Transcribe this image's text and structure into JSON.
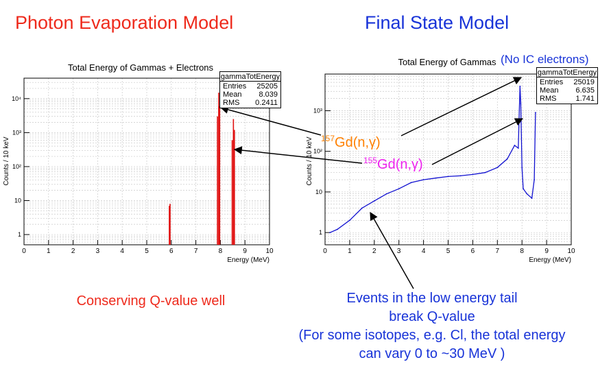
{
  "headings": {
    "left": "Photon Evaporation Model",
    "right": "Final State Model"
  },
  "colors": {
    "left_heading": "#ee2a1c",
    "right_heading": "#1833d8",
    "red": "#e01010",
    "blue": "#1010d0",
    "orange": "#ff8000",
    "magenta": "#ee22ee"
  },
  "chart_data": [
    {
      "type": "bar",
      "title": "Total Energy of Gammas + Electrons",
      "xlabel": "Energy (MeV)",
      "ylabel": "Counts / 10 keV",
      "xlim": [
        0,
        10
      ],
      "ylim_log": [
        0.5,
        40000
      ],
      "log_y": true,
      "grid": true,
      "xticks": [
        "0",
        "1",
        "2",
        "3",
        "4",
        "5",
        "6",
        "7",
        "8",
        "9",
        "10"
      ],
      "yticks": [
        "1",
        "10",
        "10²",
        "10³",
        "10⁴"
      ],
      "stats": {
        "name": "gammaTotEnergy",
        "entries": "25205",
        "mean": "8.039",
        "rms": "0.2411"
      },
      "peaks": [
        {
          "x": 5.92,
          "y": 7
        },
        {
          "x": 5.95,
          "y": 8
        },
        {
          "x": 7.88,
          "y": 3000
        },
        {
          "x": 7.93,
          "y": 15000
        },
        {
          "x": 7.97,
          "y": 6000
        },
        {
          "x": 8.48,
          "y": 600
        },
        {
          "x": 8.53,
          "y": 2500
        },
        {
          "x": 8.57,
          "y": 1200
        }
      ],
      "color": "#e01010"
    },
    {
      "type": "line",
      "title": "Total Energy of Gammas",
      "title_extra": "(No IC electrons)",
      "xlabel": "Energy (MeV)",
      "ylabel": "Counts / 10 keV",
      "xlim": [
        0,
        10
      ],
      "ylim_log": [
        0.5,
        8000
      ],
      "log_y": true,
      "grid": true,
      "xticks": [
        "0",
        "1",
        "2",
        "3",
        "4",
        "5",
        "6",
        "7",
        "8",
        "9",
        "10"
      ],
      "yticks": [
        "1",
        "10",
        "10²",
        "10³"
      ],
      "stats": {
        "name": "gammaTotEnergy",
        "entries": "25019",
        "mean": "6.635",
        "rms": "1.741"
      },
      "series": [
        {
          "x": [
            0.2,
            0.5,
            1.0,
            1.5,
            2.0,
            2.5,
            3.0,
            3.5,
            4.0,
            4.5,
            5.0,
            5.5,
            6.0,
            6.5,
            7.0,
            7.4,
            7.7,
            7.85,
            7.92,
            7.95,
            8.0,
            8.05,
            8.2,
            8.4,
            8.5,
            8.55
          ],
          "y": [
            1,
            1.2,
            2,
            4,
            6,
            9,
            12,
            17,
            20,
            22,
            24,
            25,
            27,
            30,
            40,
            65,
            140,
            120,
            4000,
            1500,
            40,
            12,
            9,
            7,
            20,
            900
          ]
        }
      ],
      "color": "#1010d0"
    }
  ],
  "annotations": {
    "gd157": {
      "iso": "157",
      "text": "Gd(n,γ)"
    },
    "gd155": {
      "iso": "155",
      "text": "Gd(n,γ)"
    }
  },
  "captions": {
    "left": "Conserving Q-value well",
    "right_lines": [
      "Events in the low energy tail",
      "break Q-value",
      "(For some isotopes, e.g. Cl, the total energy",
      "can vary 0 to ~30 MeV )"
    ]
  }
}
